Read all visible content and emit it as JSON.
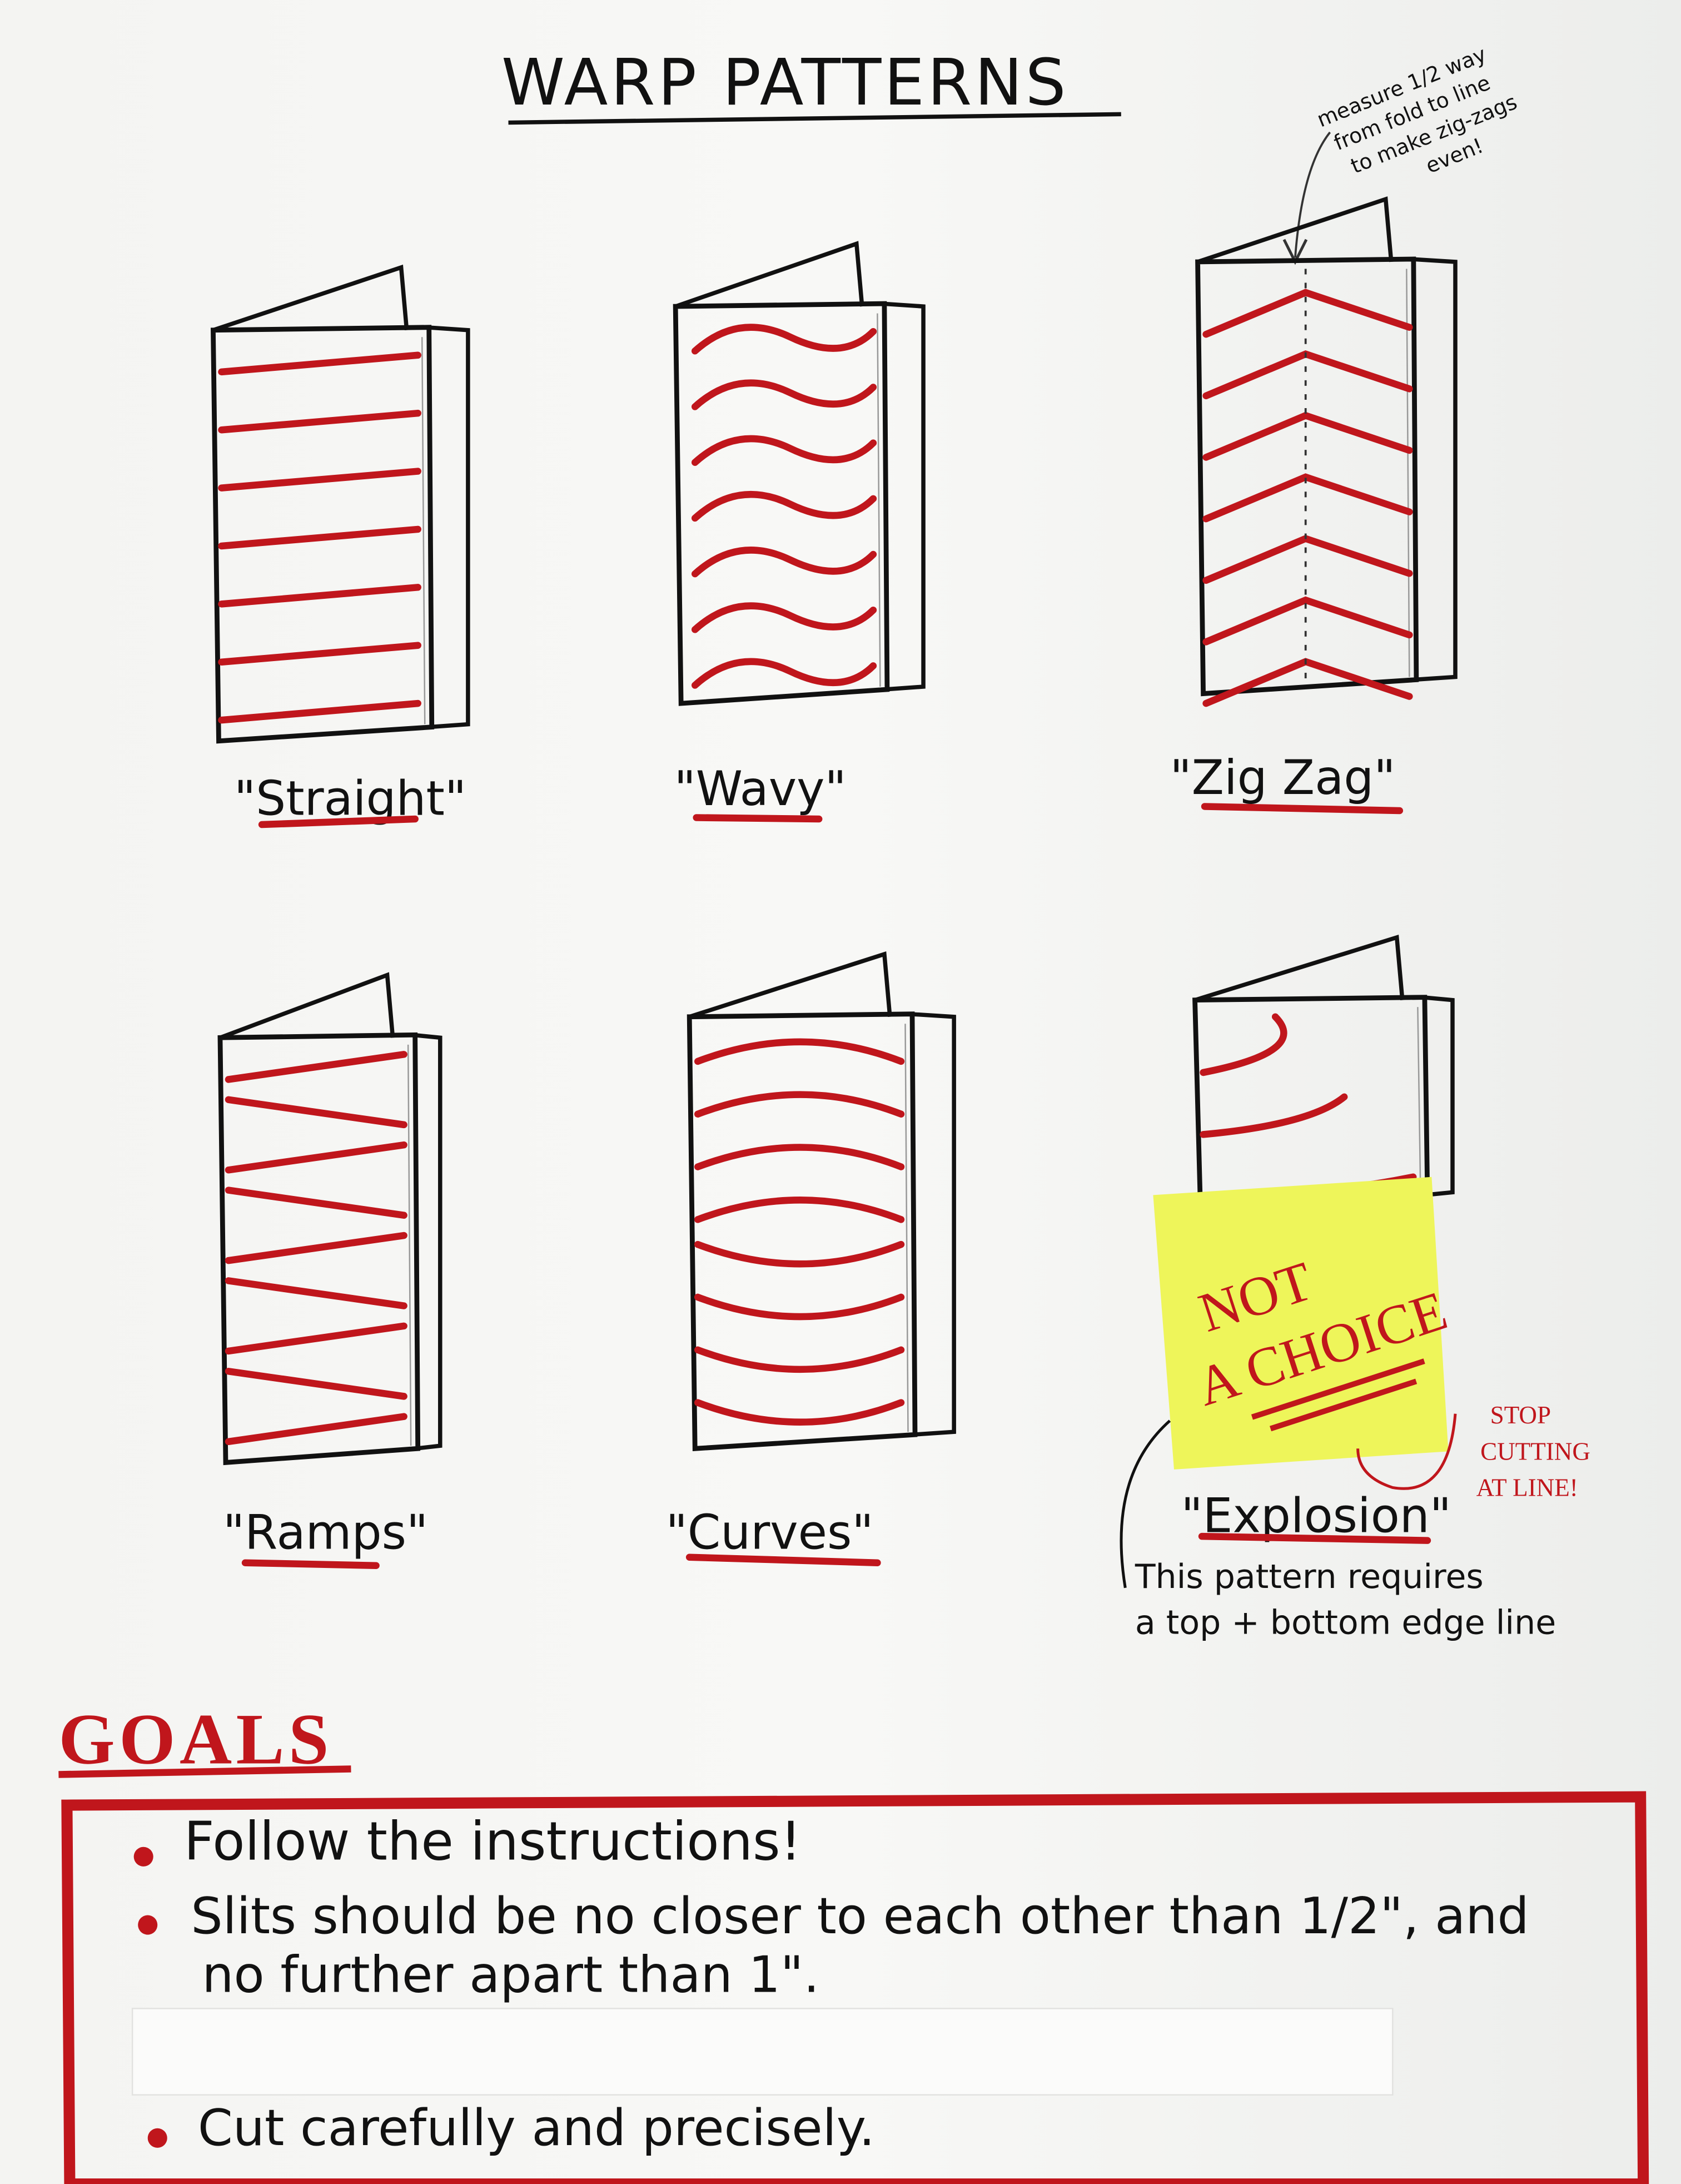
{
  "title": "WARP PATTERNS",
  "annotation_zigzag": [
    "measure 1/2 way",
    "from fold to line",
    "to make zig-zags",
    "even!"
  ],
  "patterns": [
    {
      "label": "\"Straight\""
    },
    {
      "label": "\"Wavy\""
    },
    {
      "label": "\"Zig Zag\""
    },
    {
      "label": "\"Ramps\""
    },
    {
      "label": "\"Curves\""
    },
    {
      "label": "\"Explosion\""
    }
  ],
  "sticky_note": {
    "line1": "NOT",
    "line2": "A CHOICE",
    "color": "#eef55a"
  },
  "stop_note": [
    "STOP",
    "CUTTING",
    "AT LINE!"
  ],
  "explosion_note": [
    "This pattern requires",
    "a top + bottom edge line"
  ],
  "goals": {
    "heading": "GOALS",
    "items": [
      "Follow the instructions!",
      "Slits should be no closer to each other than 1/2\", and",
      "no further apart than 1\".",
      "Cut carefully and precisely."
    ]
  },
  "colors": {
    "marker_red": "#c0161c",
    "ink": "#111111",
    "paper": "#f6f6f4",
    "tape": "#fbfbfa"
  }
}
